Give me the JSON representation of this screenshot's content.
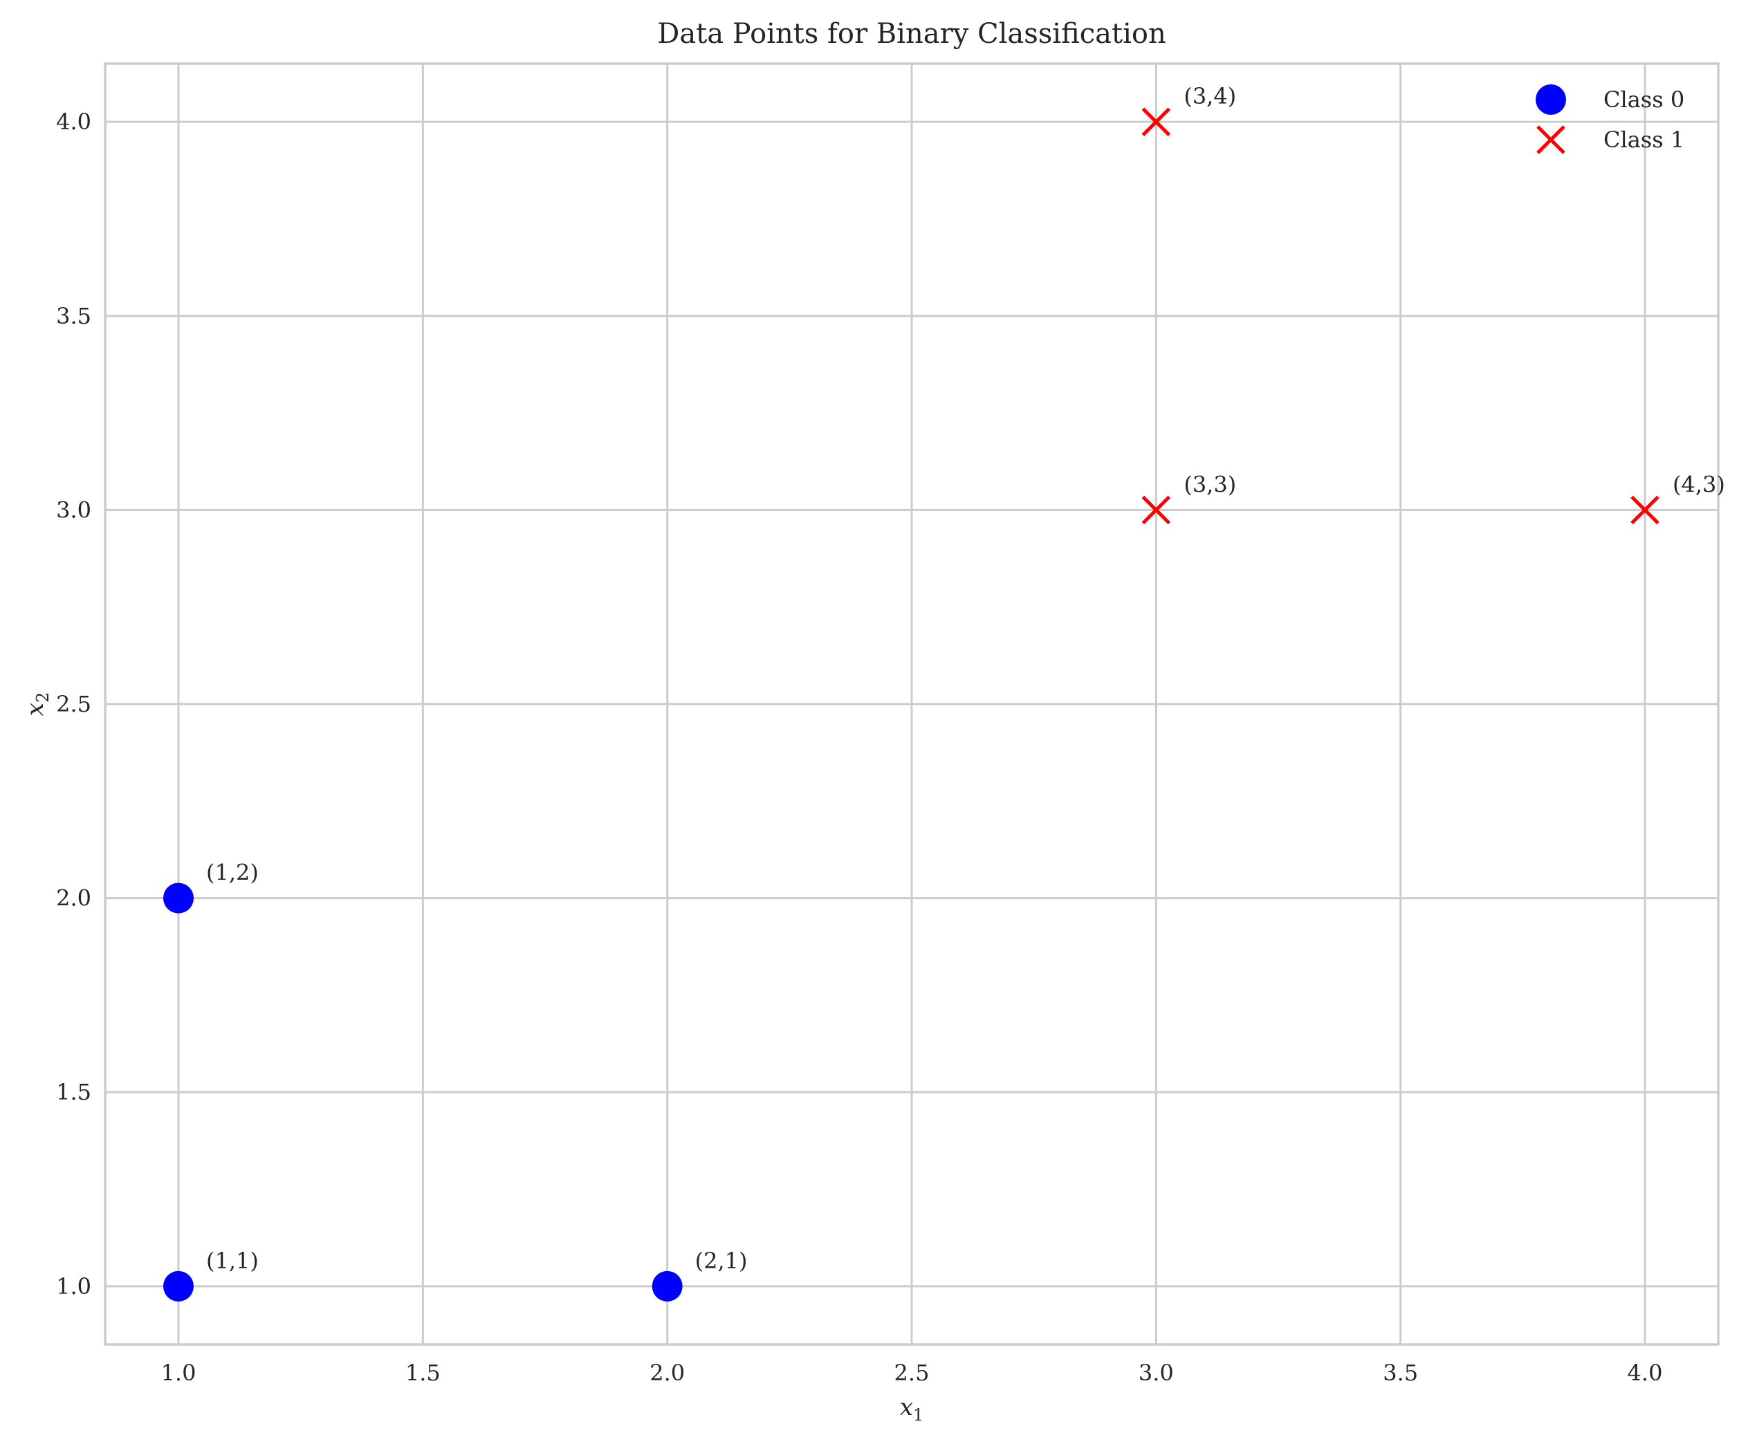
{
  "chart_data": {
    "type": "scatter",
    "title": "Data Points for Binary Classification",
    "xlabel": "x",
    "xlabel_sub": "1",
    "ylabel": "x",
    "ylabel_sub": "2",
    "xlim": [
      0.85,
      4.15
    ],
    "ylim": [
      0.85,
      4.15
    ],
    "xticks": [
      1.0,
      1.5,
      2.0,
      2.5,
      3.0,
      3.5,
      4.0
    ],
    "yticks": [
      1.0,
      1.5,
      2.0,
      2.5,
      3.0,
      3.5,
      4.0
    ],
    "xtick_labels": [
      "1.0",
      "1.5",
      "2.0",
      "2.5",
      "3.0",
      "3.5",
      "4.0"
    ],
    "ytick_labels": [
      "1.0",
      "1.5",
      "2.0",
      "2.5",
      "3.0",
      "3.5",
      "4.0"
    ],
    "grid": true,
    "legend_position": "top-right",
    "series": [
      {
        "name": "Class 0",
        "marker": "circle",
        "color": "#0000ff",
        "points": [
          {
            "x": 1,
            "y": 1,
            "label": "(1,1)"
          },
          {
            "x": 1,
            "y": 2,
            "label": "(1,2)"
          },
          {
            "x": 2,
            "y": 1,
            "label": "(2,1)"
          }
        ]
      },
      {
        "name": "Class 1",
        "marker": "x",
        "color": "#ff0000",
        "points": [
          {
            "x": 3,
            "y": 3,
            "label": "(3,3)"
          },
          {
            "x": 3,
            "y": 4,
            "label": "(3,4)"
          },
          {
            "x": 4,
            "y": 3,
            "label": "(4,3)"
          }
        ]
      }
    ]
  }
}
